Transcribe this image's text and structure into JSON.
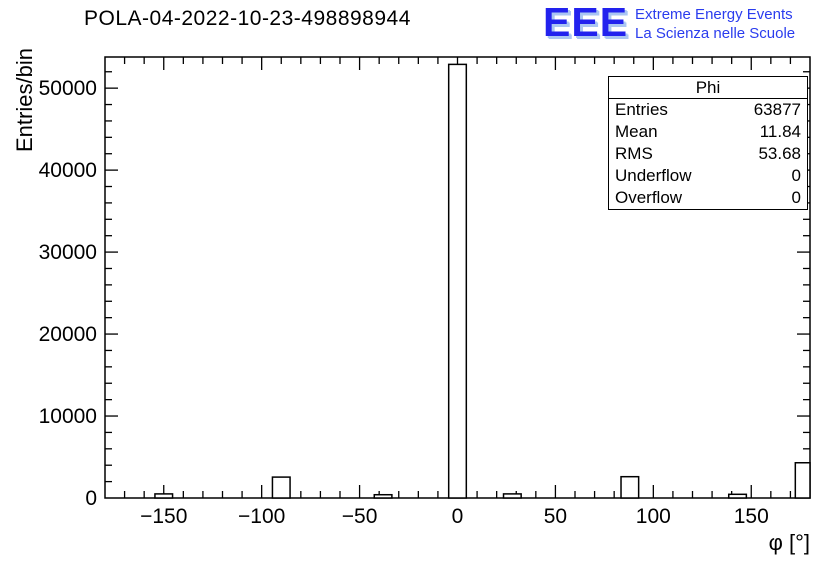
{
  "page": {
    "background": "#ffffff"
  },
  "title": "POLA-04-2022-10-23-498898944",
  "logo": {
    "acronym": "EEE",
    "line1": "Extreme Energy Events",
    "line2": "La Scienza nelle Scuole",
    "color": "#2222ee",
    "shadow_color": "#aac6f2"
  },
  "stats": {
    "title": "Phi",
    "rows": [
      {
        "label": "Entries",
        "value": "63877"
      },
      {
        "label": "Mean",
        "value": "11.84"
      },
      {
        "label": "RMS",
        "value": "53.68"
      },
      {
        "label": "Underflow",
        "value": "0"
      },
      {
        "label": "Overflow",
        "value": "0"
      }
    ]
  },
  "chart_data": {
    "type": "bar",
    "title": "POLA-04-2022-10-23-498898944",
    "xlabel": "φ [°]",
    "ylabel": "Entries/bin",
    "xlim": [
      -180,
      180
    ],
    "ylim": [
      0,
      53800
    ],
    "x_major_ticks": [
      -150,
      -100,
      -50,
      0,
      50,
      100,
      150
    ],
    "x_tick_labels": [
      "−150",
      "−100",
      "−50",
      "0",
      "50",
      "100",
      "150"
    ],
    "x_minor_step": 10,
    "y_major_ticks": [
      0,
      10000,
      20000,
      30000,
      40000,
      50000
    ],
    "y_tick_labels": [
      "0",
      "10000",
      "20000",
      "30000",
      "40000",
      "50000"
    ],
    "y_minor_step": 2000,
    "grid": false,
    "legend": "none",
    "bar_fill": "#ffffff",
    "bar_stroke": "#000000",
    "bin_width": 9,
    "bins": [
      {
        "center": -150,
        "value": 500
      },
      {
        "center": -90,
        "value": 2550
      },
      {
        "center": -38,
        "value": 400
      },
      {
        "center": 0,
        "value": 52900
      },
      {
        "center": 28,
        "value": 500
      },
      {
        "center": 88,
        "value": 2600
      },
      {
        "center": 143,
        "value": 450
      },
      {
        "center": 177,
        "value": 4300
      }
    ]
  }
}
